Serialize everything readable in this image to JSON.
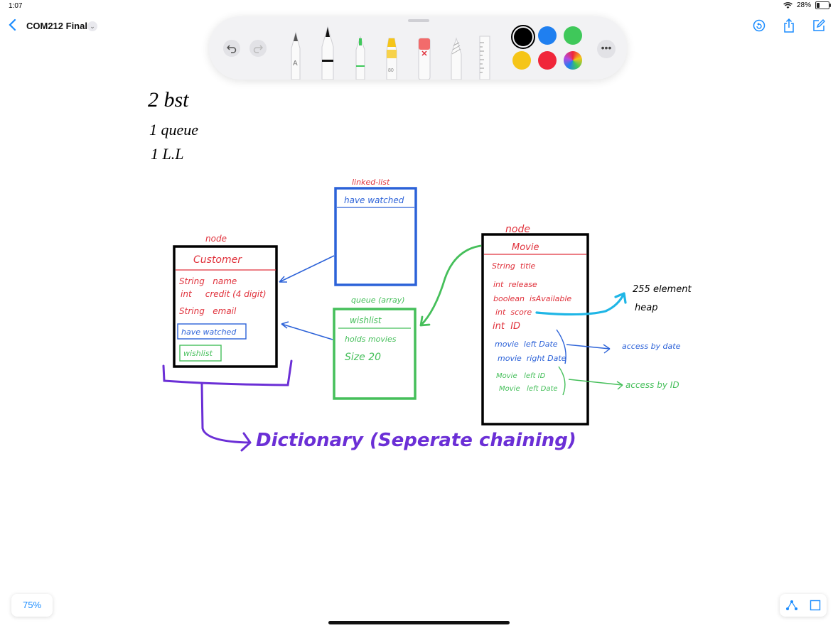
{
  "status_bar": {
    "time": "1:07",
    "battery": "28%",
    "battery_level": 0.28
  },
  "nav": {
    "title": "COM212 Final",
    "back_label": "<",
    "menu_chevron": "⌄"
  },
  "toolbar": {
    "tools": [
      "monoline-pen",
      "pen",
      "marker",
      "highlighter",
      "eraser",
      "pencil",
      "ruler"
    ],
    "pen_letter": "A",
    "highlighter_size": "80",
    "colors": [
      {
        "name": "black",
        "hex": "#000000",
        "selected": true
      },
      {
        "name": "blue",
        "hex": "#1f7ff0"
      },
      {
        "name": "green",
        "hex": "#3fc85a"
      },
      {
        "name": "yellow",
        "hex": "#f5c518"
      },
      {
        "name": "red",
        "hex": "#f0263a"
      },
      {
        "name": "multicolor",
        "hex": "#999999"
      }
    ],
    "more_label": "•••"
  },
  "drawing": {
    "notes": [
      "2 bst",
      "1 queue",
      "1 L.L"
    ],
    "customer_box": {
      "node_label": "node",
      "title": "Customer",
      "fields": [
        "String   name",
        "int     credit (4 digit)",
        "String   email"
      ],
      "have_watched": "have watched",
      "wishlist": "wishlist"
    },
    "linked_list_box": {
      "caption": "linked-list",
      "header": "have watched"
    },
    "queue_box": {
      "caption": "queue (array)",
      "title": "wishlist",
      "lines": [
        "holds movies",
        "Size 20"
      ]
    },
    "movie_box": {
      "node_label": "node",
      "title": "Movie",
      "fields": [
        "String  title",
        "int  release",
        "boolean  isAvailable",
        "int  score",
        "int  ID"
      ],
      "blue_fields": [
        "movie  left Date",
        "movie  right Date"
      ],
      "green_fields": [
        "Movie   left ID",
        "Movie   left Date"
      ]
    },
    "heap_note": [
      "255 element",
      "heap"
    ],
    "access_date": "access by date",
    "access_id": "access by ID",
    "dictionary": "Dictionary (Seperate chaining)"
  },
  "zoom": "75%",
  "colors": {
    "accent": "#1a8cff",
    "ink_red": "#e0323c",
    "ink_blue": "#2c62d8",
    "ink_green": "#45bf5a",
    "ink_purple": "#6b2fd6",
    "ink_cyan": "#1fb6e6",
    "ink_black": "#000000"
  }
}
